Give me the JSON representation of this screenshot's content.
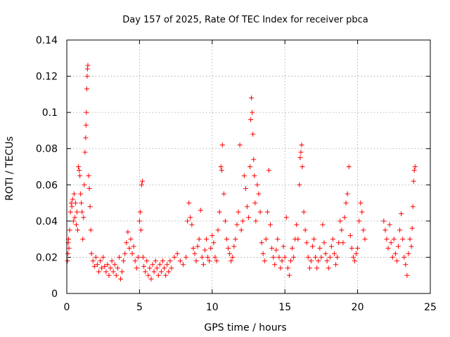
{
  "chart_data": {
    "type": "scatter",
    "title": "Day 157 of 2025, Rate Of TEC Index for receiver pbca",
    "xlabel": "GPS time / hours",
    "ylabel": "ROTI / TECUs",
    "xlim": [
      0,
      25
    ],
    "ylim": [
      0,
      0.14
    ],
    "xticks": [
      0,
      5,
      10,
      15,
      20,
      25
    ],
    "yticks": [
      0,
      0.02,
      0.04,
      0.06,
      0.08,
      0.1,
      0.12,
      0.14
    ],
    "xtick_labels": [
      "0",
      "5",
      "10",
      "15",
      "20",
      "25"
    ],
    "ytick_labels": [
      "0",
      "0.02",
      "0.04",
      "0.06",
      "0.08",
      "0.1",
      "0.12",
      "0.14"
    ],
    "grid": true,
    "marker": "plus",
    "color": "#ff0000",
    "series": [
      {
        "points": [
          [
            0.05,
            0.018
          ],
          [
            0.08,
            0.022
          ],
          [
            0.1,
            0.028
          ],
          [
            0.12,
            0.03
          ],
          [
            0.15,
            0.025
          ],
          [
            0.2,
            0.035
          ],
          [
            0.25,
            0.045
          ],
          [
            0.3,
            0.05
          ],
          [
            0.35,
            0.048
          ],
          [
            0.4,
            0.052
          ],
          [
            0.45,
            0.04
          ],
          [
            0.5,
            0.055
          ],
          [
            0.55,
            0.042
          ],
          [
            0.6,
            0.05
          ],
          [
            0.65,
            0.038
          ],
          [
            0.7,
            0.045
          ],
          [
            0.75,
            0.035
          ],
          [
            0.8,
            0.07
          ],
          [
            0.85,
            0.068
          ],
          [
            0.9,
            0.065
          ],
          [
            0.95,
            0.055
          ],
          [
            1.0,
            0.05
          ],
          [
            1.05,
            0.045
          ],
          [
            1.1,
            0.03
          ],
          [
            1.15,
            0.042
          ],
          [
            1.2,
            0.06
          ],
          [
            1.25,
            0.078
          ],
          [
            1.3,
            0.086
          ],
          [
            1.32,
            0.093
          ],
          [
            1.35,
            0.1
          ],
          [
            1.38,
            0.113
          ],
          [
            1.4,
            0.12
          ],
          [
            1.42,
            0.124
          ],
          [
            1.45,
            0.126
          ],
          [
            1.5,
            0.065
          ],
          [
            1.55,
            0.058
          ],
          [
            1.6,
            0.048
          ],
          [
            1.65,
            0.035
          ],
          [
            1.7,
            0.022
          ],
          [
            1.8,
            0.018
          ],
          [
            1.9,
            0.015
          ],
          [
            2.0,
            0.02
          ],
          [
            2.1,
            0.016
          ],
          [
            2.2,
            0.012
          ],
          [
            2.3,
            0.018
          ],
          [
            2.4,
            0.014
          ],
          [
            2.5,
            0.02
          ],
          [
            2.6,
            0.015
          ],
          [
            2.7,
            0.012
          ],
          [
            2.8,
            0.016
          ],
          [
            2.9,
            0.01
          ],
          [
            3.0,
            0.014
          ],
          [
            3.1,
            0.018
          ],
          [
            3.2,
            0.012
          ],
          [
            3.3,
            0.016
          ],
          [
            3.4,
            0.01
          ],
          [
            3.5,
            0.014
          ],
          [
            3.6,
            0.02
          ],
          [
            3.7,
            0.008
          ],
          [
            3.8,
            0.012
          ],
          [
            3.9,
            0.018
          ],
          [
            4.0,
            0.022
          ],
          [
            4.1,
            0.028
          ],
          [
            4.2,
            0.034
          ],
          [
            4.3,
            0.025
          ],
          [
            4.4,
            0.03
          ],
          [
            4.5,
            0.022
          ],
          [
            4.6,
            0.026
          ],
          [
            4.7,
            0.018
          ],
          [
            4.8,
            0.014
          ],
          [
            4.9,
            0.02
          ],
          [
            5.0,
            0.04
          ],
          [
            5.05,
            0.045
          ],
          [
            5.1,
            0.035
          ],
          [
            5.15,
            0.06
          ],
          [
            5.2,
            0.062
          ],
          [
            5.25,
            0.02
          ],
          [
            5.3,
            0.015
          ],
          [
            5.4,
            0.012
          ],
          [
            5.5,
            0.018
          ],
          [
            5.6,
            0.01
          ],
          [
            5.7,
            0.014
          ],
          [
            5.8,
            0.008
          ],
          [
            5.9,
            0.016
          ],
          [
            6.0,
            0.012
          ],
          [
            6.1,
            0.018
          ],
          [
            6.2,
            0.014
          ],
          [
            6.3,
            0.01
          ],
          [
            6.4,
            0.016
          ],
          [
            6.5,
            0.012
          ],
          [
            6.6,
            0.018
          ],
          [
            6.7,
            0.014
          ],
          [
            6.8,
            0.01
          ],
          [
            6.9,
            0.016
          ],
          [
            7.0,
            0.012
          ],
          [
            7.1,
            0.018
          ],
          [
            7.2,
            0.014
          ],
          [
            7.4,
            0.02
          ],
          [
            7.6,
            0.022
          ],
          [
            7.8,
            0.018
          ],
          [
            8.0,
            0.016
          ],
          [
            8.2,
            0.02
          ],
          [
            8.3,
            0.04
          ],
          [
            8.4,
            0.05
          ],
          [
            8.5,
            0.042
          ],
          [
            8.6,
            0.038
          ],
          [
            8.7,
            0.025
          ],
          [
            8.8,
            0.022
          ],
          [
            8.9,
            0.018
          ],
          [
            9.0,
            0.026
          ],
          [
            9.1,
            0.03
          ],
          [
            9.2,
            0.046
          ],
          [
            9.3,
            0.02
          ],
          [
            9.4,
            0.016
          ],
          [
            9.5,
            0.024
          ],
          [
            9.6,
            0.03
          ],
          [
            9.7,
            0.02
          ],
          [
            9.8,
            0.018
          ],
          [
            9.9,
            0.025
          ],
          [
            10.0,
            0.032
          ],
          [
            10.1,
            0.028
          ],
          [
            10.2,
            0.02
          ],
          [
            10.3,
            0.018
          ],
          [
            10.4,
            0.035
          ],
          [
            10.5,
            0.045
          ],
          [
            10.6,
            0.07
          ],
          [
            10.65,
            0.068
          ],
          [
            10.7,
            0.082
          ],
          [
            10.8,
            0.055
          ],
          [
            10.9,
            0.04
          ],
          [
            11.0,
            0.03
          ],
          [
            11.1,
            0.025
          ],
          [
            11.2,
            0.022
          ],
          [
            11.3,
            0.018
          ],
          [
            11.4,
            0.02
          ],
          [
            11.5,
            0.026
          ],
          [
            11.6,
            0.03
          ],
          [
            11.7,
            0.038
          ],
          [
            11.8,
            0.045
          ],
          [
            11.9,
            0.082
          ],
          [
            12.0,
            0.035
          ],
          [
            12.1,
            0.04
          ],
          [
            12.2,
            0.065
          ],
          [
            12.3,
            0.058
          ],
          [
            12.4,
            0.048
          ],
          [
            12.5,
            0.042
          ],
          [
            12.6,
            0.07
          ],
          [
            12.65,
            0.096
          ],
          [
            12.7,
            0.108
          ],
          [
            12.75,
            0.1
          ],
          [
            12.8,
            0.088
          ],
          [
            12.85,
            0.074
          ],
          [
            12.9,
            0.065
          ],
          [
            12.95,
            0.05
          ],
          [
            13.0,
            0.04
          ],
          [
            13.1,
            0.06
          ],
          [
            13.2,
            0.055
          ],
          [
            13.3,
            0.045
          ],
          [
            13.4,
            0.028
          ],
          [
            13.5,
            0.022
          ],
          [
            13.6,
            0.018
          ],
          [
            13.7,
            0.03
          ],
          [
            13.8,
            0.045
          ],
          [
            13.9,
            0.068
          ],
          [
            14.0,
            0.038
          ],
          [
            14.1,
            0.025
          ],
          [
            14.2,
            0.02
          ],
          [
            14.3,
            0.016
          ],
          [
            14.4,
            0.024
          ],
          [
            14.5,
            0.03
          ],
          [
            14.6,
            0.02
          ],
          [
            14.7,
            0.014
          ],
          [
            14.8,
            0.018
          ],
          [
            14.9,
            0.026
          ],
          [
            15.0,
            0.02
          ],
          [
            15.1,
            0.042
          ],
          [
            15.2,
            0.014
          ],
          [
            15.3,
            0.01
          ],
          [
            15.4,
            0.018
          ],
          [
            15.5,
            0.025
          ],
          [
            15.6,
            0.02
          ],
          [
            15.7,
            0.03
          ],
          [
            15.8,
            0.038
          ],
          [
            15.9,
            0.03
          ],
          [
            16.0,
            0.06
          ],
          [
            16.05,
            0.075
          ],
          [
            16.1,
            0.078
          ],
          [
            16.15,
            0.082
          ],
          [
            16.2,
            0.07
          ],
          [
            16.3,
            0.045
          ],
          [
            16.4,
            0.035
          ],
          [
            16.5,
            0.028
          ],
          [
            16.6,
            0.02
          ],
          [
            16.7,
            0.014
          ],
          [
            16.8,
            0.018
          ],
          [
            16.9,
            0.026
          ],
          [
            17.0,
            0.03
          ],
          [
            17.1,
            0.02
          ],
          [
            17.2,
            0.014
          ],
          [
            17.3,
            0.018
          ],
          [
            17.4,
            0.025
          ],
          [
            17.5,
            0.02
          ],
          [
            17.6,
            0.038
          ],
          [
            17.7,
            0.028
          ],
          [
            17.8,
            0.022
          ],
          [
            17.9,
            0.018
          ],
          [
            18.0,
            0.014
          ],
          [
            18.1,
            0.02
          ],
          [
            18.2,
            0.026
          ],
          [
            18.3,
            0.03
          ],
          [
            18.4,
            0.022
          ],
          [
            18.5,
            0.016
          ],
          [
            18.6,
            0.02
          ],
          [
            18.7,
            0.028
          ],
          [
            18.8,
            0.04
          ],
          [
            18.9,
            0.035
          ],
          [
            19.0,
            0.028
          ],
          [
            19.1,
            0.042
          ],
          [
            19.2,
            0.05
          ],
          [
            19.3,
            0.055
          ],
          [
            19.4,
            0.07
          ],
          [
            19.5,
            0.032
          ],
          [
            19.6,
            0.025
          ],
          [
            19.7,
            0.02
          ],
          [
            19.8,
            0.018
          ],
          [
            19.9,
            0.022
          ],
          [
            20.0,
            0.025
          ],
          [
            20.1,
            0.04
          ],
          [
            20.2,
            0.05
          ],
          [
            20.3,
            0.045
          ],
          [
            20.4,
            0.035
          ],
          [
            20.5,
            0.03
          ],
          [
            21.8,
            0.04
          ],
          [
            21.9,
            0.035
          ],
          [
            22.0,
            0.03
          ],
          [
            22.1,
            0.025
          ],
          [
            22.2,
            0.038
          ],
          [
            22.3,
            0.028
          ],
          [
            22.4,
            0.02
          ],
          [
            22.5,
            0.03
          ],
          [
            22.6,
            0.022
          ],
          [
            22.7,
            0.018
          ],
          [
            22.8,
            0.026
          ],
          [
            22.9,
            0.035
          ],
          [
            23.0,
            0.044
          ],
          [
            23.1,
            0.03
          ],
          [
            23.2,
            0.02
          ],
          [
            23.3,
            0.016
          ],
          [
            23.4,
            0.01
          ],
          [
            23.5,
            0.022
          ],
          [
            23.6,
            0.03
          ],
          [
            23.7,
            0.026
          ],
          [
            23.75,
            0.036
          ],
          [
            23.8,
            0.048
          ],
          [
            23.85,
            0.062
          ],
          [
            23.9,
            0.068
          ],
          [
            23.95,
            0.07
          ]
        ]
      }
    ]
  }
}
